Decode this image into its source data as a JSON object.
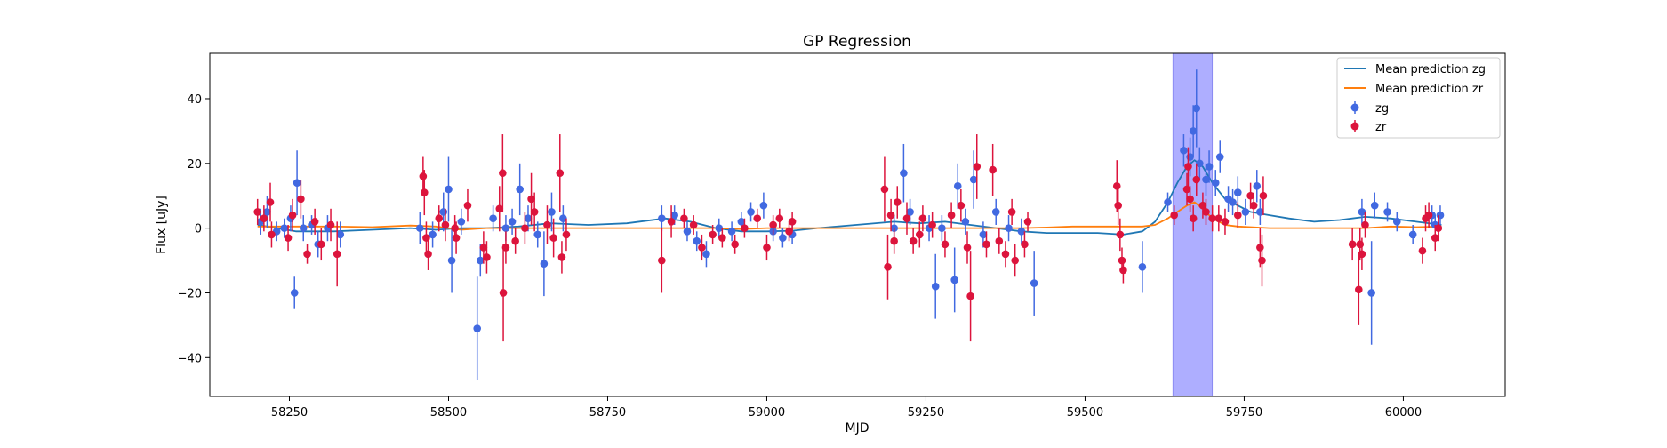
{
  "chart_data": {
    "type": "scatter",
    "title": "GP Regression",
    "xlabel": "MJD",
    "ylabel": "Flux [uJy]",
    "xlim": [
      58125,
      60160
    ],
    "ylim": [
      -52,
      54
    ],
    "xticks": [
      58250,
      58500,
      58750,
      59000,
      59250,
      59500,
      59750,
      60000
    ],
    "yticks": [
      -40,
      -20,
      0,
      20,
      40
    ],
    "grid": false,
    "legend": {
      "placement": "top-right",
      "entries": [
        "Mean prediction zg",
        "Mean prediction zr",
        "zg",
        "zr"
      ]
    },
    "highlight_band": {
      "x": [
        59638,
        59700
      ],
      "color": "#aaaaff"
    },
    "series": [
      {
        "name": "Mean prediction zg",
        "kind": "line",
        "color": "#1f77b4",
        "x": [
          58200,
          58260,
          58320,
          58380,
          58440,
          58480,
          58520,
          58560,
          58610,
          58660,
          58720,
          58780,
          58840,
          58880,
          58920,
          58960,
          59000,
          59040,
          59080,
          59140,
          59200,
          59240,
          59280,
          59320,
          59360,
          59400,
          59440,
          59480,
          59520,
          59560,
          59590,
          59610,
          59630,
          59645,
          59660,
          59672,
          59685,
          59700,
          59720,
          59740,
          59760,
          59790,
          59820,
          59860,
          59900,
          59940,
          59980,
          60020,
          60060
        ],
        "y": [
          1,
          -1,
          -1,
          -0.5,
          0,
          -0.5,
          0,
          0,
          0.5,
          1.5,
          1,
          1.5,
          3,
          2,
          0,
          -1,
          -1,
          -0.8,
          0,
          1,
          2,
          1.5,
          2,
          1,
          0,
          -1,
          -1.5,
          -1.5,
          -1.5,
          -2,
          -1,
          2,
          8,
          14,
          19,
          21,
          19,
          14,
          9,
          7,
          5,
          4,
          3,
          2,
          2.5,
          3.5,
          3,
          2,
          1
        ]
      },
      {
        "name": "Mean prediction zr",
        "kind": "line",
        "color": "#ff7f0e",
        "x": [
          58200,
          58260,
          58320,
          58380,
          58440,
          58480,
          58520,
          58560,
          58610,
          58660,
          58720,
          58780,
          58840,
          58880,
          58920,
          58960,
          59000,
          59040,
          59080,
          59140,
          59200,
          59240,
          59280,
          59320,
          59360,
          59400,
          59440,
          59480,
          59520,
          59560,
          59590,
          59610,
          59630,
          59645,
          59660,
          59672,
          59685,
          59700,
          59720,
          59740,
          59760,
          59790,
          59820,
          59860,
          59900,
          59940,
          59980,
          60020,
          60060
        ],
        "y": [
          0.5,
          0.5,
          0.5,
          0.3,
          0.8,
          0.5,
          -0.5,
          0,
          0,
          0,
          0,
          0,
          0,
          0,
          0,
          -0.3,
          0,
          0,
          0,
          0,
          0,
          0,
          0,
          0,
          0,
          0,
          0.2,
          0.5,
          0.5,
          0.5,
          0.5,
          1,
          3,
          5,
          7,
          8,
          6,
          3,
          1,
          0.5,
          0.3,
          0,
          0,
          0,
          0,
          0,
          0.5,
          0.3,
          0.5
        ]
      },
      {
        "name": "zg",
        "kind": "errorbar",
        "color": "#4169e1",
        "points": [
          [
            58205,
            2,
            4
          ],
          [
            58215,
            5,
            5
          ],
          [
            58230,
            -1,
            3
          ],
          [
            58242,
            0,
            3
          ],
          [
            58252,
            3,
            4
          ],
          [
            58258,
            -20,
            5
          ],
          [
            58262,
            14,
            10
          ],
          [
            58272,
            0,
            4
          ],
          [
            58285,
            1,
            3
          ],
          [
            58295,
            -5,
            4
          ],
          [
            58310,
            0,
            4
          ],
          [
            58330,
            -2,
            4
          ],
          [
            58455,
            0,
            5
          ],
          [
            58475,
            -2,
            4
          ],
          [
            58492,
            5,
            6
          ],
          [
            58500,
            12,
            10
          ],
          [
            58505,
            -10,
            10
          ],
          [
            58520,
            2,
            4
          ],
          [
            58545,
            -31,
            16
          ],
          [
            58550,
            -10,
            5
          ],
          [
            58570,
            3,
            4
          ],
          [
            58590,
            0,
            4
          ],
          [
            58600,
            2,
            4
          ],
          [
            58612,
            12,
            8
          ],
          [
            58625,
            3,
            4
          ],
          [
            58640,
            -2,
            4
          ],
          [
            58650,
            -11,
            10
          ],
          [
            58662,
            5,
            6
          ],
          [
            58680,
            3,
            4
          ],
          [
            58835,
            3,
            4
          ],
          [
            58855,
            4,
            3
          ],
          [
            58875,
            -1,
            3
          ],
          [
            58890,
            -4,
            3
          ],
          [
            58905,
            -8,
            4
          ],
          [
            58925,
            0,
            3
          ],
          [
            58945,
            -1,
            3
          ],
          [
            58960,
            2,
            3
          ],
          [
            58975,
            5,
            3
          ],
          [
            58995,
            7,
            4
          ],
          [
            59010,
            -1,
            3
          ],
          [
            59025,
            -3,
            3
          ],
          [
            59040,
            -2,
            3
          ],
          [
            59200,
            0,
            4
          ],
          [
            59215,
            17,
            9
          ],
          [
            59225,
            5,
            4
          ],
          [
            59255,
            0,
            4
          ],
          [
            59265,
            -18,
            10
          ],
          [
            59275,
            0,
            4
          ],
          [
            59295,
            -16,
            10
          ],
          [
            59300,
            13,
            7
          ],
          [
            59312,
            2,
            4
          ],
          [
            59325,
            15,
            9
          ],
          [
            59340,
            -2,
            4
          ],
          [
            59360,
            5,
            4
          ],
          [
            59380,
            0,
            4
          ],
          [
            59400,
            -1,
            4
          ],
          [
            59420,
            -17,
            10
          ],
          [
            59590,
            -12,
            8
          ],
          [
            59630,
            8,
            3
          ],
          [
            59655,
            24,
            5
          ],
          [
            59665,
            22,
            6
          ],
          [
            59670,
            30,
            8
          ],
          [
            59675,
            37,
            12
          ],
          [
            59680,
            20,
            5
          ],
          [
            59690,
            15,
            5
          ],
          [
            59695,
            19,
            5
          ],
          [
            59705,
            14,
            4
          ],
          [
            59712,
            22,
            5
          ],
          [
            59725,
            9,
            4
          ],
          [
            59732,
            8,
            4
          ],
          [
            59740,
            11,
            5
          ],
          [
            59752,
            5,
            4
          ],
          [
            59770,
            13,
            5
          ],
          [
            59775,
            5,
            4
          ],
          [
            59935,
            5,
            4
          ],
          [
            59950,
            -20,
            16
          ],
          [
            59955,
            7,
            4
          ],
          [
            59975,
            5,
            3
          ],
          [
            59990,
            2,
            3
          ],
          [
            60015,
            -2,
            3
          ],
          [
            60045,
            4,
            3
          ],
          [
            60050,
            1,
            3
          ],
          [
            60058,
            4,
            3
          ]
        ]
      },
      {
        "name": "zr",
        "kind": "errorbar",
        "color": "#dc143c",
        "points": [
          [
            58200,
            5,
            4
          ],
          [
            58210,
            3,
            4
          ],
          [
            58220,
            8,
            6
          ],
          [
            58222,
            -2,
            4
          ],
          [
            58248,
            -3,
            4
          ],
          [
            58255,
            4,
            5
          ],
          [
            58268,
            9,
            6
          ],
          [
            58278,
            -8,
            3
          ],
          [
            58290,
            2,
            4
          ],
          [
            58300,
            -5,
            5
          ],
          [
            58315,
            1,
            5
          ],
          [
            58325,
            -8,
            10
          ],
          [
            58460,
            16,
            6
          ],
          [
            58462,
            11,
            7
          ],
          [
            58465,
            -3,
            5
          ],
          [
            58468,
            -8,
            5
          ],
          [
            58485,
            3,
            4
          ],
          [
            58495,
            1,
            5
          ],
          [
            58510,
            0,
            4
          ],
          [
            58512,
            -3,
            5
          ],
          [
            58530,
            7,
            5
          ],
          [
            58555,
            -6,
            5
          ],
          [
            58560,
            -9,
            5
          ],
          [
            58580,
            6,
            7
          ],
          [
            58585,
            17,
            12
          ],
          [
            58586,
            -20,
            15
          ],
          [
            58590,
            -6,
            5
          ],
          [
            58605,
            -4,
            4
          ],
          [
            58620,
            0,
            5
          ],
          [
            58630,
            9,
            8
          ],
          [
            58635,
            5,
            6
          ],
          [
            58655,
            1,
            6
          ],
          [
            58665,
            -3,
            6
          ],
          [
            58675,
            17,
            12
          ],
          [
            58678,
            -9,
            5
          ],
          [
            58685,
            -2,
            5
          ],
          [
            58835,
            -10,
            10
          ],
          [
            58850,
            2,
            5
          ],
          [
            58870,
            3,
            3
          ],
          [
            58885,
            1,
            3
          ],
          [
            58898,
            -6,
            4
          ],
          [
            58915,
            -2,
            3
          ],
          [
            58930,
            -3,
            3
          ],
          [
            58950,
            -5,
            3
          ],
          [
            58965,
            0,
            3
          ],
          [
            58985,
            3,
            3
          ],
          [
            59000,
            -6,
            4
          ],
          [
            59010,
            1,
            3
          ],
          [
            59020,
            3,
            3
          ],
          [
            59035,
            -1,
            3
          ],
          [
            59040,
            2,
            3
          ],
          [
            59185,
            12,
            10
          ],
          [
            59190,
            -12,
            10
          ],
          [
            59195,
            4,
            5
          ],
          [
            59200,
            -4,
            4
          ],
          [
            59205,
            8,
            5
          ],
          [
            59220,
            3,
            5
          ],
          [
            59230,
            -4,
            4
          ],
          [
            59240,
            -2,
            4
          ],
          [
            59245,
            3,
            4
          ],
          [
            59260,
            1,
            4
          ],
          [
            59280,
            -5,
            4
          ],
          [
            59290,
            4,
            4
          ],
          [
            59305,
            7,
            5
          ],
          [
            59315,
            -6,
            5
          ],
          [
            59320,
            -21,
            14
          ],
          [
            59330,
            19,
            10
          ],
          [
            59345,
            -5,
            4
          ],
          [
            59355,
            18,
            8
          ],
          [
            59365,
            -4,
            4
          ],
          [
            59375,
            -8,
            4
          ],
          [
            59385,
            5,
            4
          ],
          [
            59390,
            -10,
            5
          ],
          [
            59405,
            -5,
            4
          ],
          [
            59410,
            2,
            3
          ],
          [
            59550,
            13,
            8
          ],
          [
            59552,
            7,
            6
          ],
          [
            59555,
            -2,
            5
          ],
          [
            59558,
            -10,
            4
          ],
          [
            59560,
            -13,
            4
          ],
          [
            59640,
            4,
            3
          ],
          [
            59660,
            12,
            5
          ],
          [
            59662,
            19,
            6
          ],
          [
            59665,
            9,
            4
          ],
          [
            59670,
            3,
            4
          ],
          [
            59675,
            15,
            5
          ],
          [
            59685,
            7,
            4
          ],
          [
            59690,
            5,
            4
          ],
          [
            59700,
            3,
            4
          ],
          [
            59710,
            3,
            4
          ],
          [
            59720,
            2,
            4
          ],
          [
            59740,
            4,
            4
          ],
          [
            59760,
            10,
            4
          ],
          [
            59765,
            7,
            4
          ],
          [
            59775,
            -6,
            6
          ],
          [
            59778,
            -10,
            8
          ],
          [
            59780,
            10,
            6
          ],
          [
            59920,
            -5,
            5
          ],
          [
            59930,
            -19,
            11
          ],
          [
            59932,
            -5,
            5
          ],
          [
            59935,
            -8,
            5
          ],
          [
            59940,
            1,
            4
          ],
          [
            60030,
            -7,
            4
          ],
          [
            60035,
            3,
            4
          ],
          [
            60040,
            4,
            4
          ],
          [
            60050,
            -3,
            4
          ],
          [
            60055,
            0,
            4
          ]
        ]
      }
    ]
  }
}
